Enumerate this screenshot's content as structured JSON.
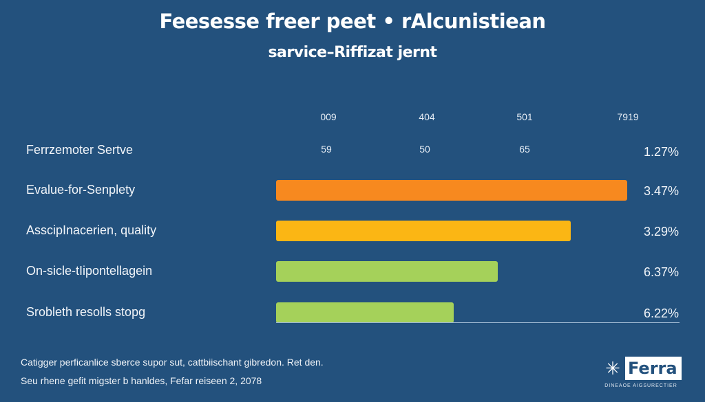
{
  "chart_data": {
    "type": "bar",
    "orientation": "horizontal",
    "title": "Feesesse freer peet • rAlcunistiean",
    "subtitle": "sarvice–Riffizat jernt",
    "column_headers": [
      "009",
      "404",
      "501",
      "7919"
    ],
    "header_row": {
      "label": "Ferrzemoter Sertve",
      "values": [
        "59",
        "50",
        "65"
      ],
      "percent": "1.27%"
    },
    "categories": [
      "Evalue-for-Senplety",
      "AsscipInacerien, quality",
      "On-sicle-tIipontellagein",
      "Srobleth resolls stopg"
    ],
    "percent_labels": [
      "3.47%",
      "3.29%",
      "6.37%",
      "6.22%"
    ],
    "bar_fill_fraction": [
      0.87,
      0.73,
      0.55,
      0.44
    ],
    "bar_colors": [
      "#f7891f",
      "#fbb614",
      "#a5d15a",
      "#a5d15a"
    ],
    "grid": false,
    "legend": "none"
  },
  "footer": {
    "line1": "Catigger perficanlice sberce supor sut, cattbiischant gibredon. Ret den.",
    "line2": "Seu rhene gefit migster b hanldes, Fefar reiseen 2, 2078"
  },
  "logo": {
    "text": "Ferra",
    "tagline": "DINEAOE AIGSURECTIER"
  },
  "colors": {
    "background": "#23517d",
    "text": "#ffffff"
  }
}
